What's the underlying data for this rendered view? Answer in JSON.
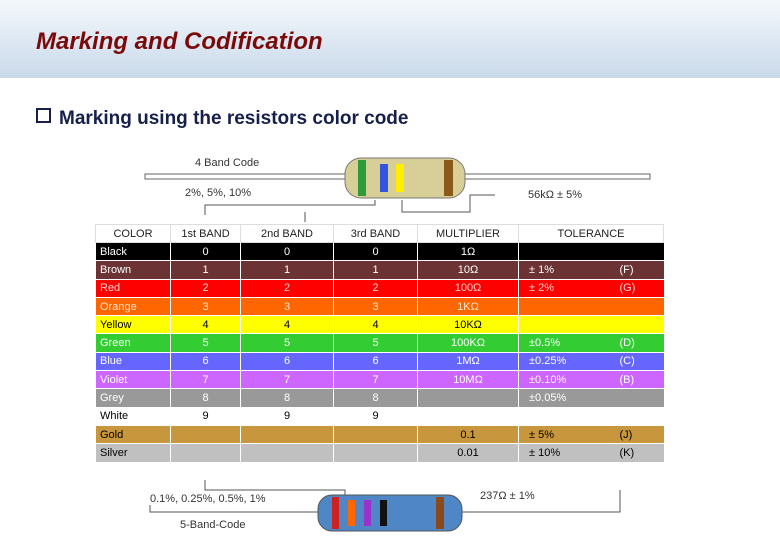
{
  "header": {
    "title": "Marking and Codification"
  },
  "bullet": "Marking using the resistors color code",
  "diagram": {
    "top_title": "4 Band Code",
    "top_tolerances": "2%, 5%, 10%",
    "top_example": "56kΩ ± 5%",
    "bottom_tolerances": "0.1%, 0.25%, 0.5%, 1%",
    "bottom_example": "237Ω ± 1%",
    "bottom_title": "5-Band-Code"
  },
  "table": {
    "header": [
      "COLOR",
      "1st BAND",
      "2nd BAND",
      "3rd BAND",
      "MULTIPLIER",
      "TOLERANCE"
    ],
    "rows": [
      {
        "fill": "#000000",
        "text": "#ffffff",
        "cells": [
          "Black",
          "0",
          "0",
          "0",
          "1Ω",
          null,
          null
        ]
      },
      {
        "fill": "#6b3333",
        "text": "#ffffff",
        "cells": [
          "Brown",
          "1",
          "1",
          "1",
          "10Ω",
          "± 1%",
          "(F)"
        ]
      },
      {
        "fill": "#ff0000",
        "text": "#ffd0d0",
        "cells": [
          "Red",
          "2",
          "2",
          "2",
          "100Ω",
          "± 2%",
          "(G)"
        ]
      },
      {
        "fill": "#ff6600",
        "text": "#ffe8d0",
        "cells": [
          "Orange",
          "3",
          "3",
          "3",
          "1KΩ",
          null,
          null
        ]
      },
      {
        "fill": "#ffff00",
        "text": "#000000",
        "cells": [
          "Yellow",
          "4",
          "4",
          "4",
          "10KΩ",
          null,
          null
        ]
      },
      {
        "fill": "#33cc33",
        "text": "#ffffff",
        "cells": [
          "Green",
          "5",
          "5",
          "5",
          "100KΩ",
          "±0.5%",
          "(D)"
        ]
      },
      {
        "fill": "#6666ff",
        "text": "#ffffff",
        "cells": [
          "Blue",
          "6",
          "6",
          "6",
          "1MΩ",
          "±0.25%",
          "(C)"
        ]
      },
      {
        "fill": "#cc66ff",
        "text": "#ffffff",
        "cells": [
          "Violet",
          "7",
          "7",
          "7",
          "10MΩ",
          "±0.10%",
          "(B)"
        ]
      },
      {
        "fill": "#999999",
        "text": "#ffffff",
        "cells": [
          "Grey",
          "8",
          "8",
          "8",
          null,
          "±0.05%",
          null
        ]
      },
      {
        "fill": "#ffffff",
        "text": "#000000",
        "cells": [
          "White",
          "9",
          "9",
          "9",
          null,
          null,
          null
        ]
      },
      {
        "fill": "#c8963c",
        "text": "#000000",
        "cells": [
          "Gold",
          null,
          null,
          null,
          "0.1",
          "± 5%",
          "(J)"
        ]
      },
      {
        "fill": "#c0c0c0",
        "text": "#000000",
        "cells": [
          "Silver",
          null,
          null,
          null,
          "0.01",
          "± 10%",
          "(K)"
        ]
      }
    ]
  }
}
